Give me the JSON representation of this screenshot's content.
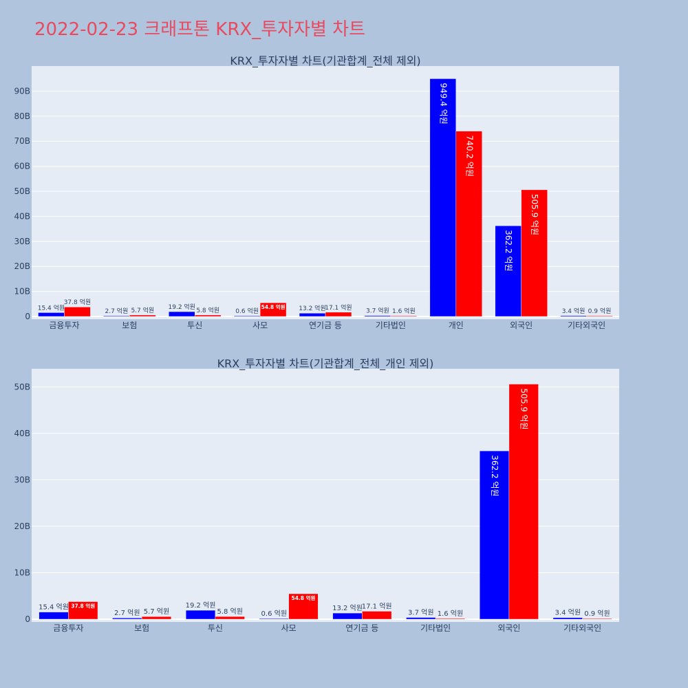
{
  "page_title": "2022-02-23 크래프톤 KRX_투자자별 차트",
  "colors": {
    "buy": "#0000ff",
    "sell": "#ff0000",
    "plot_bg": "#e5ecf6",
    "page_bg": "#b0c4de",
    "title": "#e84a5f"
  },
  "chart_data": [
    {
      "type": "bar",
      "title": "KRX_투자자별 차트(기관합계_전체 제외)",
      "categories": [
        "금융투자",
        "보험",
        "투신",
        "사모",
        "연기금 등",
        "기타법인",
        "개인",
        "외국인",
        "기타외국인"
      ],
      "series": [
        {
          "color": "#0000ff",
          "values": [
            1.54,
            0.27,
            1.92,
            0.06,
            1.32,
            0.37,
            94.94,
            36.22,
            0.34
          ],
          "labels": [
            "15.4 억원",
            "2.7 억원",
            "19.2 억원",
            "0.6 억원",
            "13.2 억원",
            "3.7 억원",
            "949.4 억원",
            "362.2 억원",
            "3.4 억원"
          ]
        },
        {
          "color": "#ff0000",
          "values": [
            3.78,
            0.57,
            0.58,
            5.48,
            1.71,
            0.16,
            74.02,
            50.59,
            0.09
          ],
          "labels": [
            "37.8 억원",
            "5.7 억원",
            "5.8 억원",
            "54.8 억원",
            "17.1 억원",
            "1.6 억원",
            "740.2 억원",
            "505.9 억원",
            "0.9 억원"
          ]
        }
      ],
      "yticks": [
        "0",
        "10B",
        "20B",
        "30B",
        "40B",
        "50B",
        "60B",
        "70B",
        "80B",
        "90B"
      ],
      "ylim": [
        0,
        100
      ],
      "grid": true
    },
    {
      "type": "bar",
      "title": "KRX_투자자별 차트(기관합계_전체_개인 제외)",
      "categories": [
        "금융투자",
        "보험",
        "투신",
        "사모",
        "연기금 등",
        "기타법인",
        "외국인",
        "기타외국인"
      ],
      "series": [
        {
          "color": "#0000ff",
          "values": [
            1.54,
            0.27,
            1.92,
            0.06,
            1.32,
            0.37,
            36.22,
            0.34
          ],
          "labels": [
            "15.4 억원",
            "2.7 억원",
            "19.2 억원",
            "0.6 억원",
            "13.2 억원",
            "3.7 억원",
            "362.2 억원",
            "3.4 억원"
          ]
        },
        {
          "color": "#ff0000",
          "values": [
            3.78,
            0.57,
            0.58,
            5.48,
            1.71,
            0.16,
            50.59,
            0.09
          ],
          "labels": [
            "37.8 억원",
            "5.7 억원",
            "5.8 억원",
            "54.8 억원",
            "17.1 억원",
            "1.6 억원",
            "505.9 억원",
            "0.9 억원"
          ]
        }
      ],
      "yticks": [
        "0",
        "10B",
        "20B",
        "30B",
        "40B",
        "50B"
      ],
      "ylim": [
        0,
        53.9
      ],
      "grid": true
    }
  ]
}
